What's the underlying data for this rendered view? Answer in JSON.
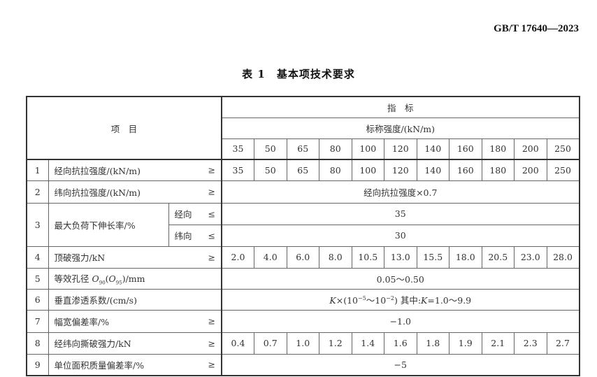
{
  "standard_number": "GB/T 17640—2023",
  "table_title": "表 1　基本项技术要求",
  "header": {
    "item": "项　目",
    "indicator": "指　标",
    "nominal_strength": "标称强度/(kN/m)",
    "grades": [
      "35",
      "50",
      "65",
      "80",
      "100",
      "120",
      "140",
      "160",
      "180",
      "200",
      "250"
    ]
  },
  "rows": [
    {
      "no": "1",
      "label": "经向抗拉强度/(kN/m)",
      "op": "≥",
      "values": [
        "35",
        "50",
        "65",
        "80",
        "100",
        "120",
        "140",
        "160",
        "180",
        "200",
        "250"
      ]
    },
    {
      "no": "2",
      "label": "纬向抗拉强度/(kN/m)",
      "op": "≥",
      "merged": "经向抗拉强度×0.7"
    },
    {
      "no": "3",
      "label": "最大负荷下伸长率/%",
      "sub": [
        {
          "label": "经向",
          "op": "≤",
          "merged": "35"
        },
        {
          "label": "纬向",
          "op": "≤",
          "merged": "30"
        }
      ]
    },
    {
      "no": "4",
      "label": "顶破强力/kN",
      "op": "≥",
      "values": [
        "2.0",
        "4.0",
        "6.0",
        "8.0",
        "10.5",
        "13.0",
        "15.5",
        "18.0",
        "20.5",
        "23.0",
        "28.0"
      ]
    },
    {
      "no": "5",
      "label_pre": "等效孔径 ",
      "label_o": "O",
      "label_sub1": "90",
      "label_mid": "(",
      "label_sub2": "95",
      "label_post": ")/mm",
      "merged": "0.05～0.50"
    },
    {
      "no": "6",
      "label": "垂直渗透系数/(cm/s)",
      "merged_k": "K",
      "merged_a": "×(10",
      "exp1": "−5",
      "merged_b": "～10",
      "exp2": "−2",
      "merged_c": ") 其中:",
      "merged_d": "=1.0～9.9"
    },
    {
      "no": "7",
      "label": "幅宽偏差率/%",
      "op": "≥",
      "merged": "−1.0"
    },
    {
      "no": "8",
      "label": "经纬向撕破强力/kN",
      "op": "≥",
      "values": [
        "0.4",
        "0.7",
        "1.0",
        "1.2",
        "1.4",
        "1.6",
        "1.8",
        "1.9",
        "2.1",
        "2.3",
        "2.7"
      ]
    },
    {
      "no": "9",
      "label": "单位面积质量偏差率/%",
      "op": "≥",
      "merged": "−5"
    }
  ]
}
